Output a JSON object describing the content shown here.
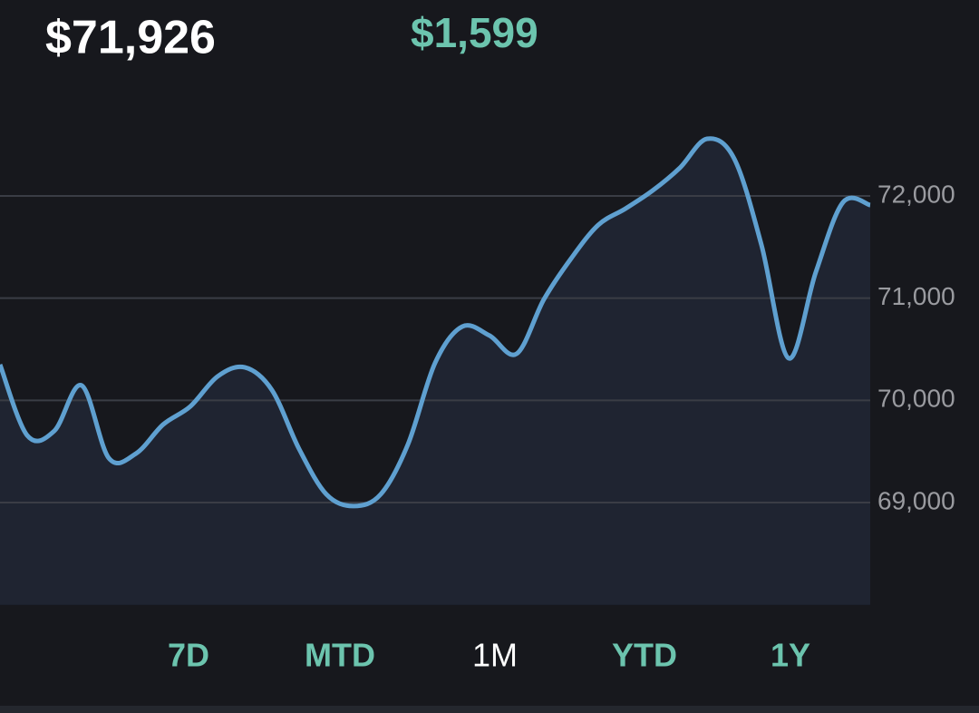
{
  "header": {
    "balance": "$71,926",
    "change": "$1,599"
  },
  "ranges": {
    "items": [
      "7D",
      "MTD",
      "1M",
      "YTD",
      "1Y"
    ],
    "selected": 2
  },
  "chart_data": {
    "type": "area",
    "color": "#5fa0d0",
    "fill": "#1f2431",
    "grid": true,
    "values": [
      70350,
      69657,
      69702,
      70146,
      69436,
      69480,
      69764,
      69941,
      70234,
      70323,
      70101,
      69524,
      69081,
      68966,
      69081,
      69569,
      70367,
      70722,
      70634,
      70456,
      70988,
      71388,
      71716,
      71876,
      72053,
      72275,
      72559,
      72364,
      71521,
      70412,
      71255,
      71938,
      71911
    ],
    "ylim": [
      68000,
      72900
    ],
    "yticks": [
      {
        "value": 69000,
        "label": "69,000"
      },
      {
        "value": 70000,
        "label": "70,000"
      },
      {
        "value": 71000,
        "label": "71,000"
      },
      {
        "value": 72000,
        "label": "72,000"
      }
    ]
  }
}
